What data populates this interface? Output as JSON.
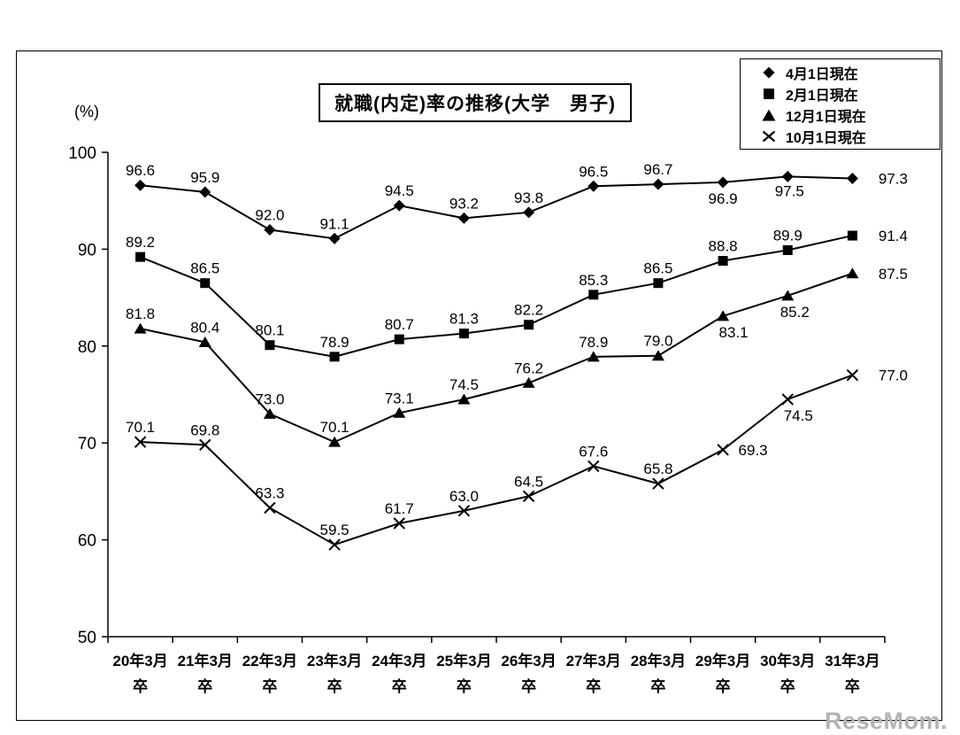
{
  "page": {
    "unit_label": "(%)",
    "watermark": "ReseMom."
  },
  "chart_data": {
    "type": "line",
    "title": "就職(内定)率の推移(大学　男子)",
    "ylabel": "(%)",
    "ylim": [
      50,
      100
    ],
    "yticks": [
      50,
      60,
      70,
      80,
      90,
      100
    ],
    "grid": false,
    "legend_position": "top-right",
    "categories": [
      "20年3月",
      "21年3月",
      "22年3月",
      "23年3月",
      "24年3月",
      "25年3月",
      "26年3月",
      "27年3月",
      "28年3月",
      "29年3月",
      "30年3月",
      "31年3月"
    ],
    "category_suffix": "卒",
    "series": [
      {
        "name": "4月1日現在",
        "marker": "diamond",
        "color": "#000000",
        "values": [
          96.6,
          95.9,
          92.0,
          91.1,
          94.5,
          93.2,
          93.8,
          96.5,
          96.7,
          96.9,
          97.5,
          97.3
        ]
      },
      {
        "name": "2月1日現在",
        "marker": "square",
        "color": "#000000",
        "values": [
          89.2,
          86.5,
          80.1,
          78.9,
          80.7,
          81.3,
          82.2,
          85.3,
          86.5,
          88.8,
          89.9,
          91.4
        ]
      },
      {
        "name": "12月1日現在",
        "marker": "triangle",
        "color": "#000000",
        "values": [
          81.8,
          80.4,
          73.0,
          70.1,
          73.1,
          74.5,
          76.2,
          78.9,
          79.0,
          83.1,
          85.2,
          87.5
        ]
      },
      {
        "name": "10月1日現在",
        "marker": "x",
        "color": "#000000",
        "values": [
          70.1,
          69.8,
          63.3,
          59.5,
          61.7,
          63.0,
          64.5,
          67.6,
          65.8,
          69.3,
          74.5,
          77.0
        ]
      }
    ]
  }
}
